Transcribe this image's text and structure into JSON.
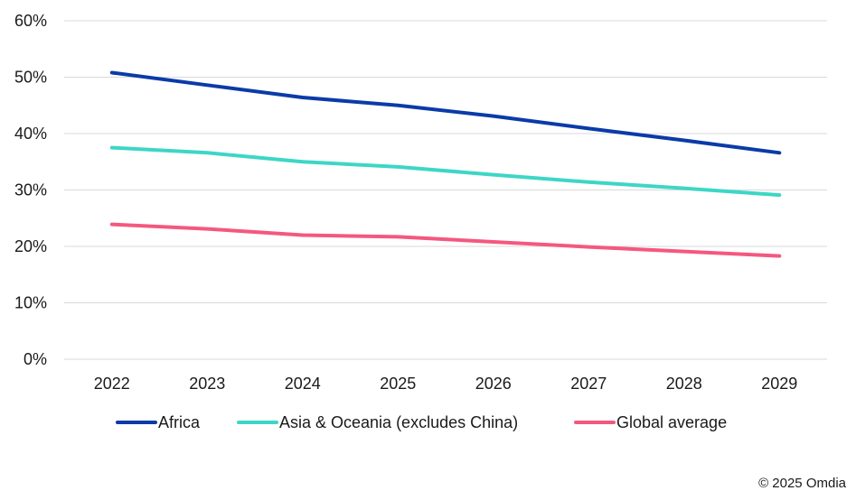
{
  "chart_data": {
    "type": "line",
    "title": "",
    "xlabel": "",
    "ylabel": "",
    "categories": [
      "2022",
      "2023",
      "2024",
      "2025",
      "2026",
      "2027",
      "2028",
      "2029"
    ],
    "ylim": [
      0,
      60
    ],
    "yticks": [
      0,
      10,
      20,
      30,
      40,
      50,
      60
    ],
    "ytick_labels": [
      "0%",
      "10%",
      "20%",
      "30%",
      "40%",
      "50%",
      "60%"
    ],
    "grid": "horizontal",
    "legend_position": "bottom",
    "series": [
      {
        "name": "Africa",
        "color": "#0a3ba8",
        "values": [
          50.8,
          48.6,
          46.4,
          45.0,
          43.1,
          40.9,
          38.8,
          36.6
        ]
      },
      {
        "name": "Asia & Oceania (excludes China)",
        "color": "#3dd6c6",
        "values": [
          37.5,
          36.6,
          35.0,
          34.1,
          32.7,
          31.4,
          30.3,
          29.1
        ]
      },
      {
        "name": "Global average",
        "color": "#f4587e",
        "values": [
          23.9,
          23.1,
          22.0,
          21.7,
          20.8,
          19.9,
          19.1,
          18.3
        ]
      }
    ],
    "source": "© 2025 Omdia"
  }
}
